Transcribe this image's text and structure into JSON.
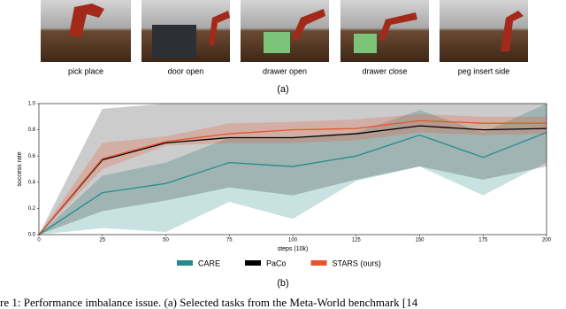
{
  "figure_a": {
    "captions": [
      "pick place",
      "door open",
      "drawer open",
      "drawer close",
      "peg insert side"
    ],
    "label": "(a)"
  },
  "chart_data": {
    "type": "line",
    "xlabel": "steps (10k)",
    "ylabel": "success rate",
    "x": [
      0,
      25,
      50,
      75,
      100,
      125,
      150,
      175,
      200
    ],
    "xlim": [
      0,
      200
    ],
    "xticks": [
      0,
      25,
      50,
      75,
      100,
      125,
      150,
      175,
      200
    ],
    "ylim": [
      0,
      1
    ],
    "yticks": [
      {
        "value": 0,
        "label": "0.0"
      },
      {
        "value": 0.2,
        "label": "0.2"
      },
      {
        "value": 0.4,
        "label": "0.4"
      },
      {
        "value": 0.6,
        "label": "0.6"
      },
      {
        "value": 0.8,
        "label": "0.8"
      },
      {
        "value": 1,
        "label": "1.0"
      }
    ],
    "grid": false,
    "legend": "bottom",
    "series": [
      {
        "name": "CARE",
        "color": "#238b8b",
        "values": [
          0,
          0.32,
          0.39,
          0.55,
          0.52,
          0.6,
          0.76,
          0.59,
          0.78
        ],
        "lower": [
          0,
          0.05,
          0.02,
          0.25,
          0.12,
          0.41,
          0.52,
          0.3,
          0.55
        ],
        "upper": [
          0,
          0.45,
          0.55,
          0.74,
          0.74,
          0.78,
          0.95,
          0.78,
          1.0
        ]
      },
      {
        "name": "PaCo",
        "color": "#000000",
        "values": [
          0,
          0.57,
          0.7,
          0.74,
          0.74,
          0.77,
          0.83,
          0.8,
          0.81
        ],
        "lower": [
          0,
          0.18,
          0.26,
          0.36,
          0.3,
          0.42,
          0.52,
          0.42,
          0.52
        ],
        "upper": [
          0,
          0.96,
          1.0,
          1.0,
          1.0,
          1.0,
          1.0,
          1.0,
          1.0
        ]
      },
      {
        "name": "STARS (ours)",
        "color": "#e8552c",
        "values": [
          0,
          0.58,
          0.71,
          0.77,
          0.8,
          0.81,
          0.87,
          0.85,
          0.85
        ],
        "lower": [
          0,
          0.5,
          0.68,
          0.7,
          0.7,
          0.72,
          0.78,
          0.76,
          0.77
        ],
        "upper": [
          0,
          0.7,
          0.75,
          0.85,
          0.86,
          0.88,
          0.92,
          0.9,
          0.9
        ]
      }
    ]
  },
  "figure_b_label": "(b)",
  "caption": "re 1: Performance imbalance issue. (a) Selected tasks from the Meta-World benchmark [14"
}
